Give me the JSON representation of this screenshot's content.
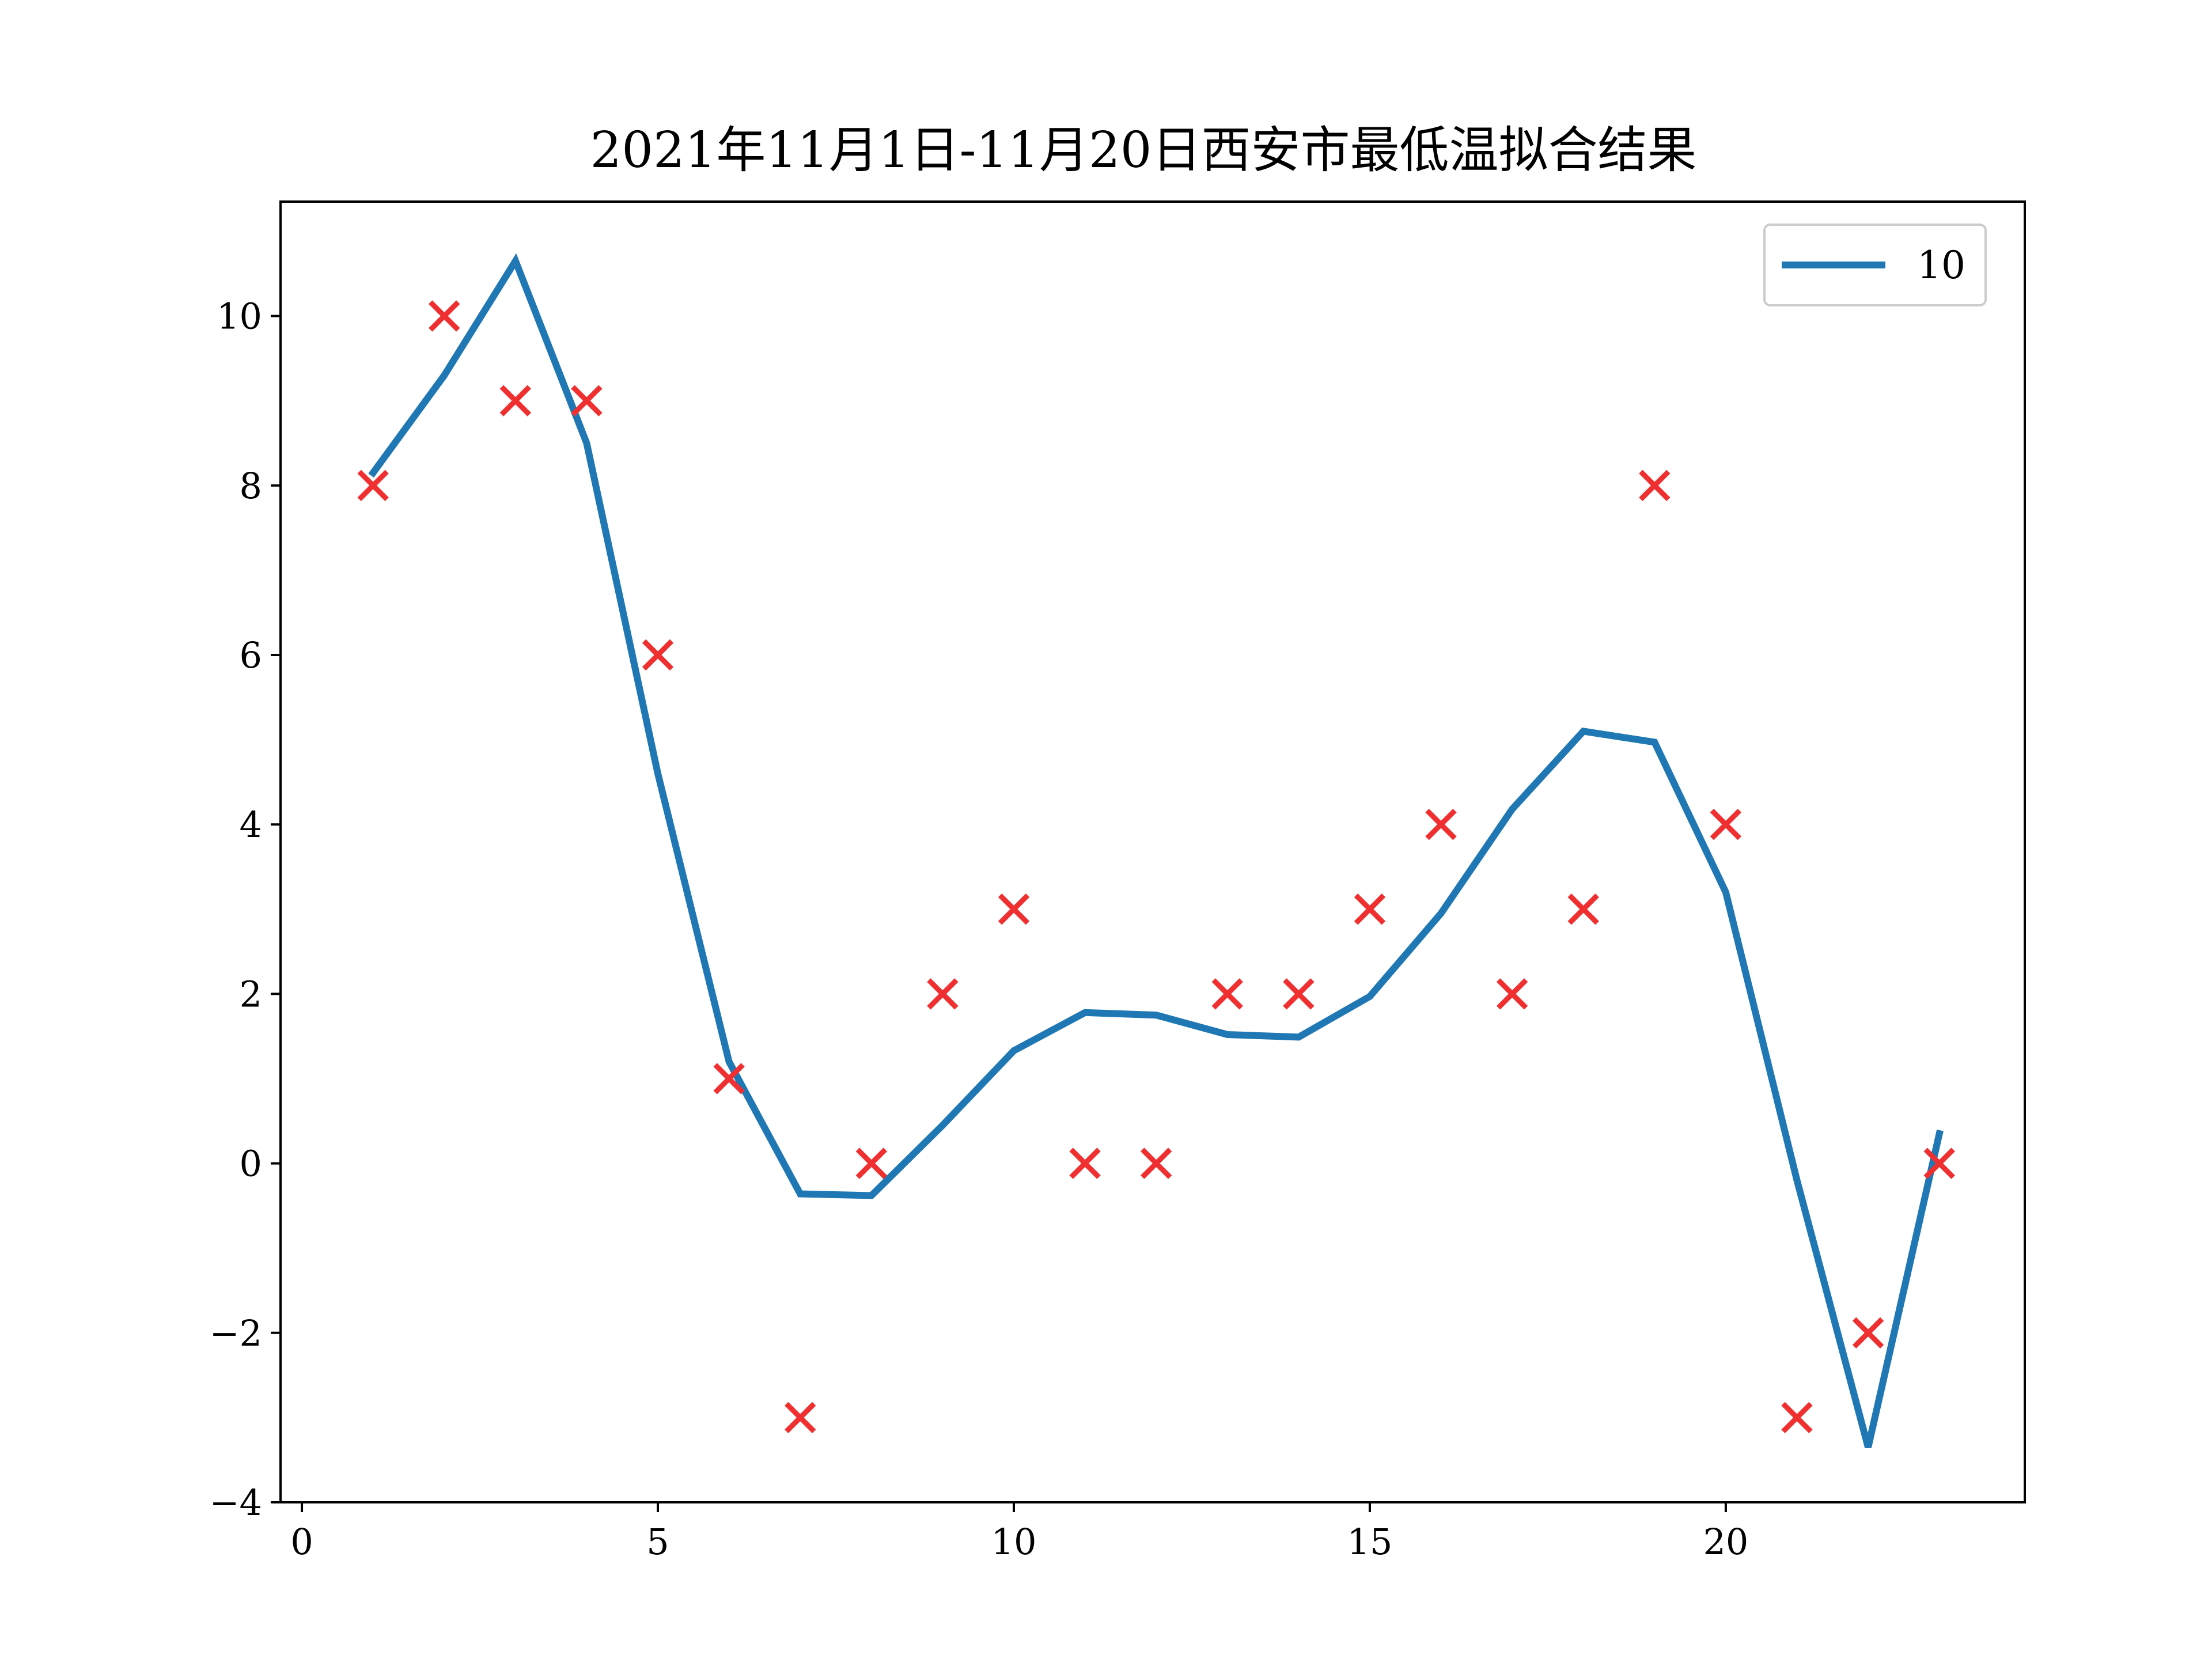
{
  "chart_data": {
    "type": "line",
    "title": "2021年11月1日-11月20日西安市最低温拟合结果",
    "xlabel": "",
    "ylabel": "",
    "xlim": [
      -0.3,
      24.2
    ],
    "ylim": [
      -4,
      11.35
    ],
    "xticks": [
      0,
      5,
      10,
      15,
      20
    ],
    "xtick_labels": [
      "0",
      "5",
      "10",
      "15",
      "20"
    ],
    "yticks": [
      -4,
      -2,
      0,
      2,
      4,
      6,
      8,
      10
    ],
    "ytick_labels": [
      "−4",
      "−2",
      "0",
      "2",
      "4",
      "6",
      "8",
      "10"
    ],
    "grid": false,
    "legend": {
      "position": "top-right",
      "entries": [
        "10"
      ]
    },
    "series": [
      {
        "name": "10",
        "kind": "line",
        "color": "#1f77b4",
        "x": [
          1,
          2,
          3,
          4,
          5,
          6,
          7,
          8,
          9,
          10,
          11,
          12,
          13,
          14,
          15,
          16,
          17,
          18,
          19,
          20,
          21,
          22,
          23
        ],
        "y": [
          8.15,
          9.3,
          10.65,
          8.5,
          4.6,
          1.2,
          -0.36,
          -0.38,
          0.45,
          1.33,
          1.78,
          1.75,
          1.52,
          1.49,
          1.97,
          2.95,
          4.18,
          5.1,
          4.97,
          3.2,
          -0.2,
          -3.35,
          0.35
        ]
      },
      {
        "kind": "scatter",
        "marker": "x",
        "color": "#f03030",
        "x": [
          1,
          2,
          3,
          4,
          5,
          6,
          7,
          8,
          9,
          10,
          11,
          12,
          13,
          14,
          15,
          16,
          17,
          18,
          19,
          20,
          21,
          22,
          23
        ],
        "y": [
          8,
          10,
          9,
          9,
          6,
          1,
          -3,
          0,
          2,
          3,
          0,
          0,
          2,
          2,
          3,
          4,
          2,
          3,
          8,
          4,
          -3,
          -2,
          0
        ]
      }
    ]
  }
}
